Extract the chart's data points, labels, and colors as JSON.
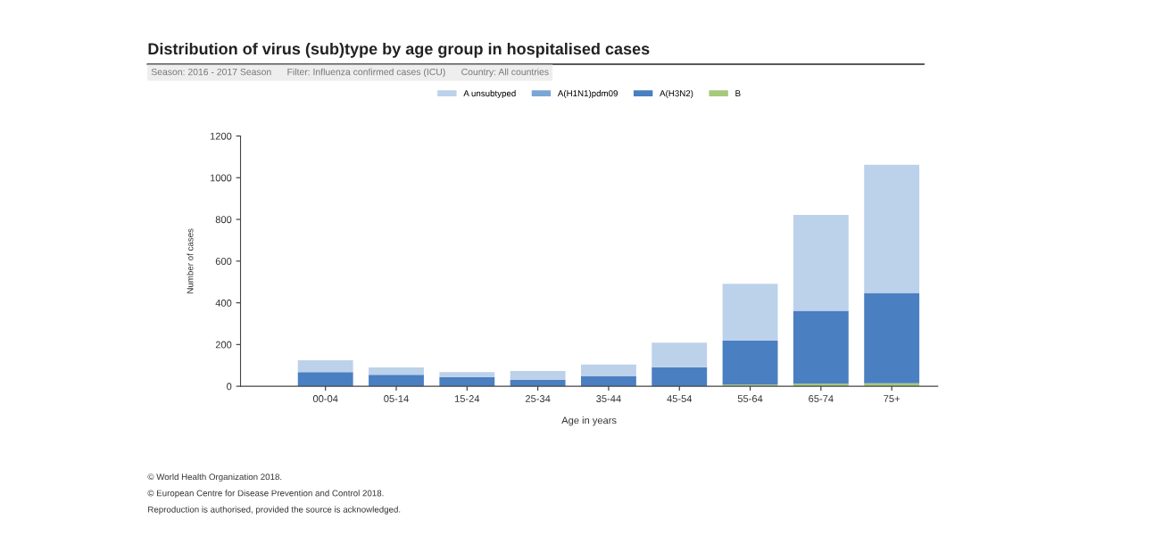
{
  "chart_data": {
    "type": "bar",
    "stacked": true,
    "title": "Distribution of virus (sub)type by age group in hospitalised cases",
    "subtitle": "Season: 2016 - 2017 Season      Filter: Influenza confirmed cases (ICU)      Country: All countries",
    "xlabel": "Age in years",
    "ylabel": "Number of cases",
    "categories": [
      "00-04",
      "05-14",
      "15-24",
      "25-34",
      "35-44",
      "45-54",
      "55-64",
      "65-74",
      "75+"
    ],
    "series": [
      {
        "name": "B",
        "color": "#a6c97a",
        "values": [
          null,
          null,
          null,
          null,
          null,
          null,
          8,
          12,
          14
        ]
      },
      {
        "name": "A(H3N2)",
        "color": "#4a7fc1",
        "values": [
          68,
          55,
          44,
          31,
          48,
          91,
          210,
          350,
          433
        ]
      },
      {
        "name": "A(H1N1)pdm09",
        "color": "#7aa6d6",
        "values": [
          0,
          0,
          0,
          0,
          0,
          0,
          0,
          0,
          0
        ]
      },
      {
        "name": "A unsubtyped",
        "color": "#bcd1ea",
        "values": [
          56,
          35,
          24,
          42,
          56,
          118,
          273,
          459,
          615
        ]
      }
    ],
    "ylim": [
      0,
      1200
    ],
    "yticks": [
      0,
      200,
      400,
      600,
      800,
      1000,
      1200
    ],
    "grid": false,
    "legend": "top",
    "annotations": [
      "© World Health Organization 2018.",
      "© European Centre for Disease Prevention and Control 2018.",
      "Reproduction is authorised, provided the source is acknowledged."
    ]
  }
}
